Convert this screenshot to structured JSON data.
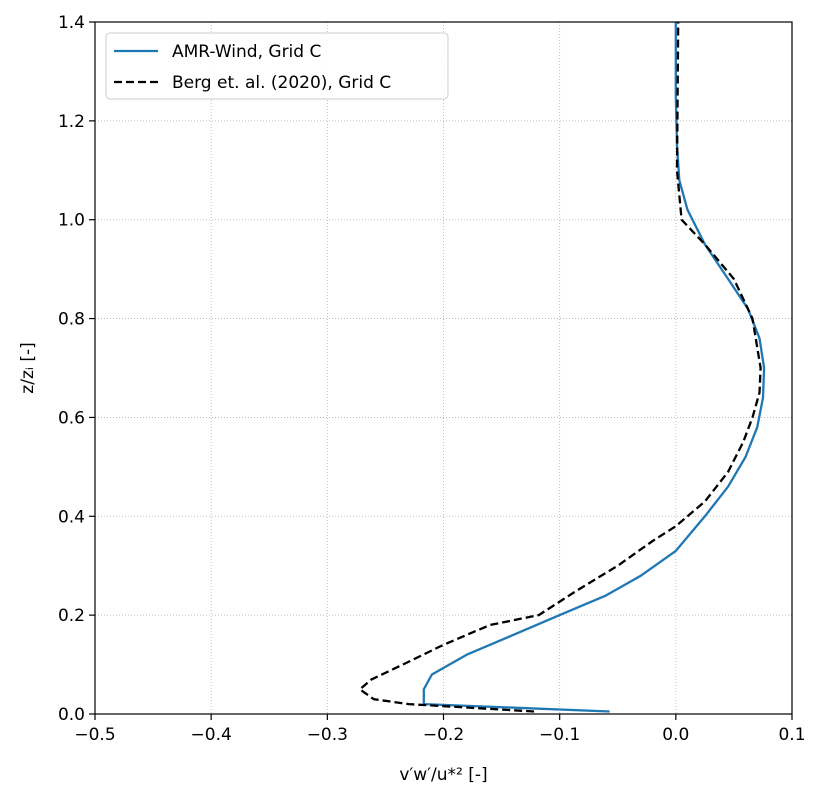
{
  "chart_data": {
    "type": "line",
    "title": "",
    "xlabel": "v′w′/u*² [-]",
    "ylabel": "z/zᵢ [-]",
    "xlim": [
      -0.5,
      0.1
    ],
    "ylim": [
      0.0,
      1.4
    ],
    "xticks": [
      -0.5,
      -0.4,
      -0.3,
      -0.2,
      -0.1,
      0.0,
      0.1
    ],
    "xtick_labels": [
      "−0.5",
      "−0.4",
      "−0.3",
      "−0.2",
      "−0.1",
      "0.0",
      "0.1"
    ],
    "yticks": [
      0.0,
      0.2,
      0.4,
      0.6,
      0.8,
      1.0,
      1.2,
      1.4
    ],
    "ytick_labels": [
      "0.0",
      "0.2",
      "0.4",
      "0.6",
      "0.8",
      "1.0",
      "1.2",
      "1.4"
    ],
    "grid": true,
    "legend_position": "top-left",
    "series": [
      {
        "name": "AMR-Wind, Grid C",
        "color": "#1f77b4",
        "style": "solid",
        "x": [
          -0.057,
          -0.217,
          -0.217,
          -0.21,
          -0.18,
          -0.14,
          -0.1,
          -0.06,
          -0.03,
          0.0,
          0.025,
          0.045,
          0.06,
          0.07,
          0.075,
          0.076,
          0.072,
          0.062,
          0.045,
          0.025,
          0.01,
          0.003,
          0.001,
          0.0,
          0.0
        ],
        "y": [
          0.005,
          0.02,
          0.05,
          0.08,
          0.12,
          0.16,
          0.2,
          0.24,
          0.28,
          0.33,
          0.4,
          0.46,
          0.52,
          0.58,
          0.64,
          0.7,
          0.76,
          0.82,
          0.88,
          0.95,
          1.02,
          1.08,
          1.15,
          1.25,
          1.4
        ]
      },
      {
        "name": "Berg et. al. (2020), Grid C",
        "color": "#000000",
        "style": "dashed",
        "x": [
          -0.122,
          -0.23,
          -0.26,
          -0.272,
          -0.262,
          -0.235,
          -0.2,
          -0.16,
          -0.118,
          -0.085,
          -0.05,
          -0.02,
          0.0,
          0.025,
          0.045,
          0.058,
          0.066,
          0.072,
          0.073,
          0.066,
          0.05,
          0.025,
          0.005,
          0.001,
          0.002
        ],
        "y": [
          0.005,
          0.02,
          0.03,
          0.05,
          0.07,
          0.1,
          0.14,
          0.18,
          0.2,
          0.25,
          0.3,
          0.35,
          0.38,
          0.43,
          0.49,
          0.55,
          0.6,
          0.65,
          0.7,
          0.8,
          0.88,
          0.95,
          1.0,
          1.1,
          1.4
        ]
      }
    ]
  }
}
